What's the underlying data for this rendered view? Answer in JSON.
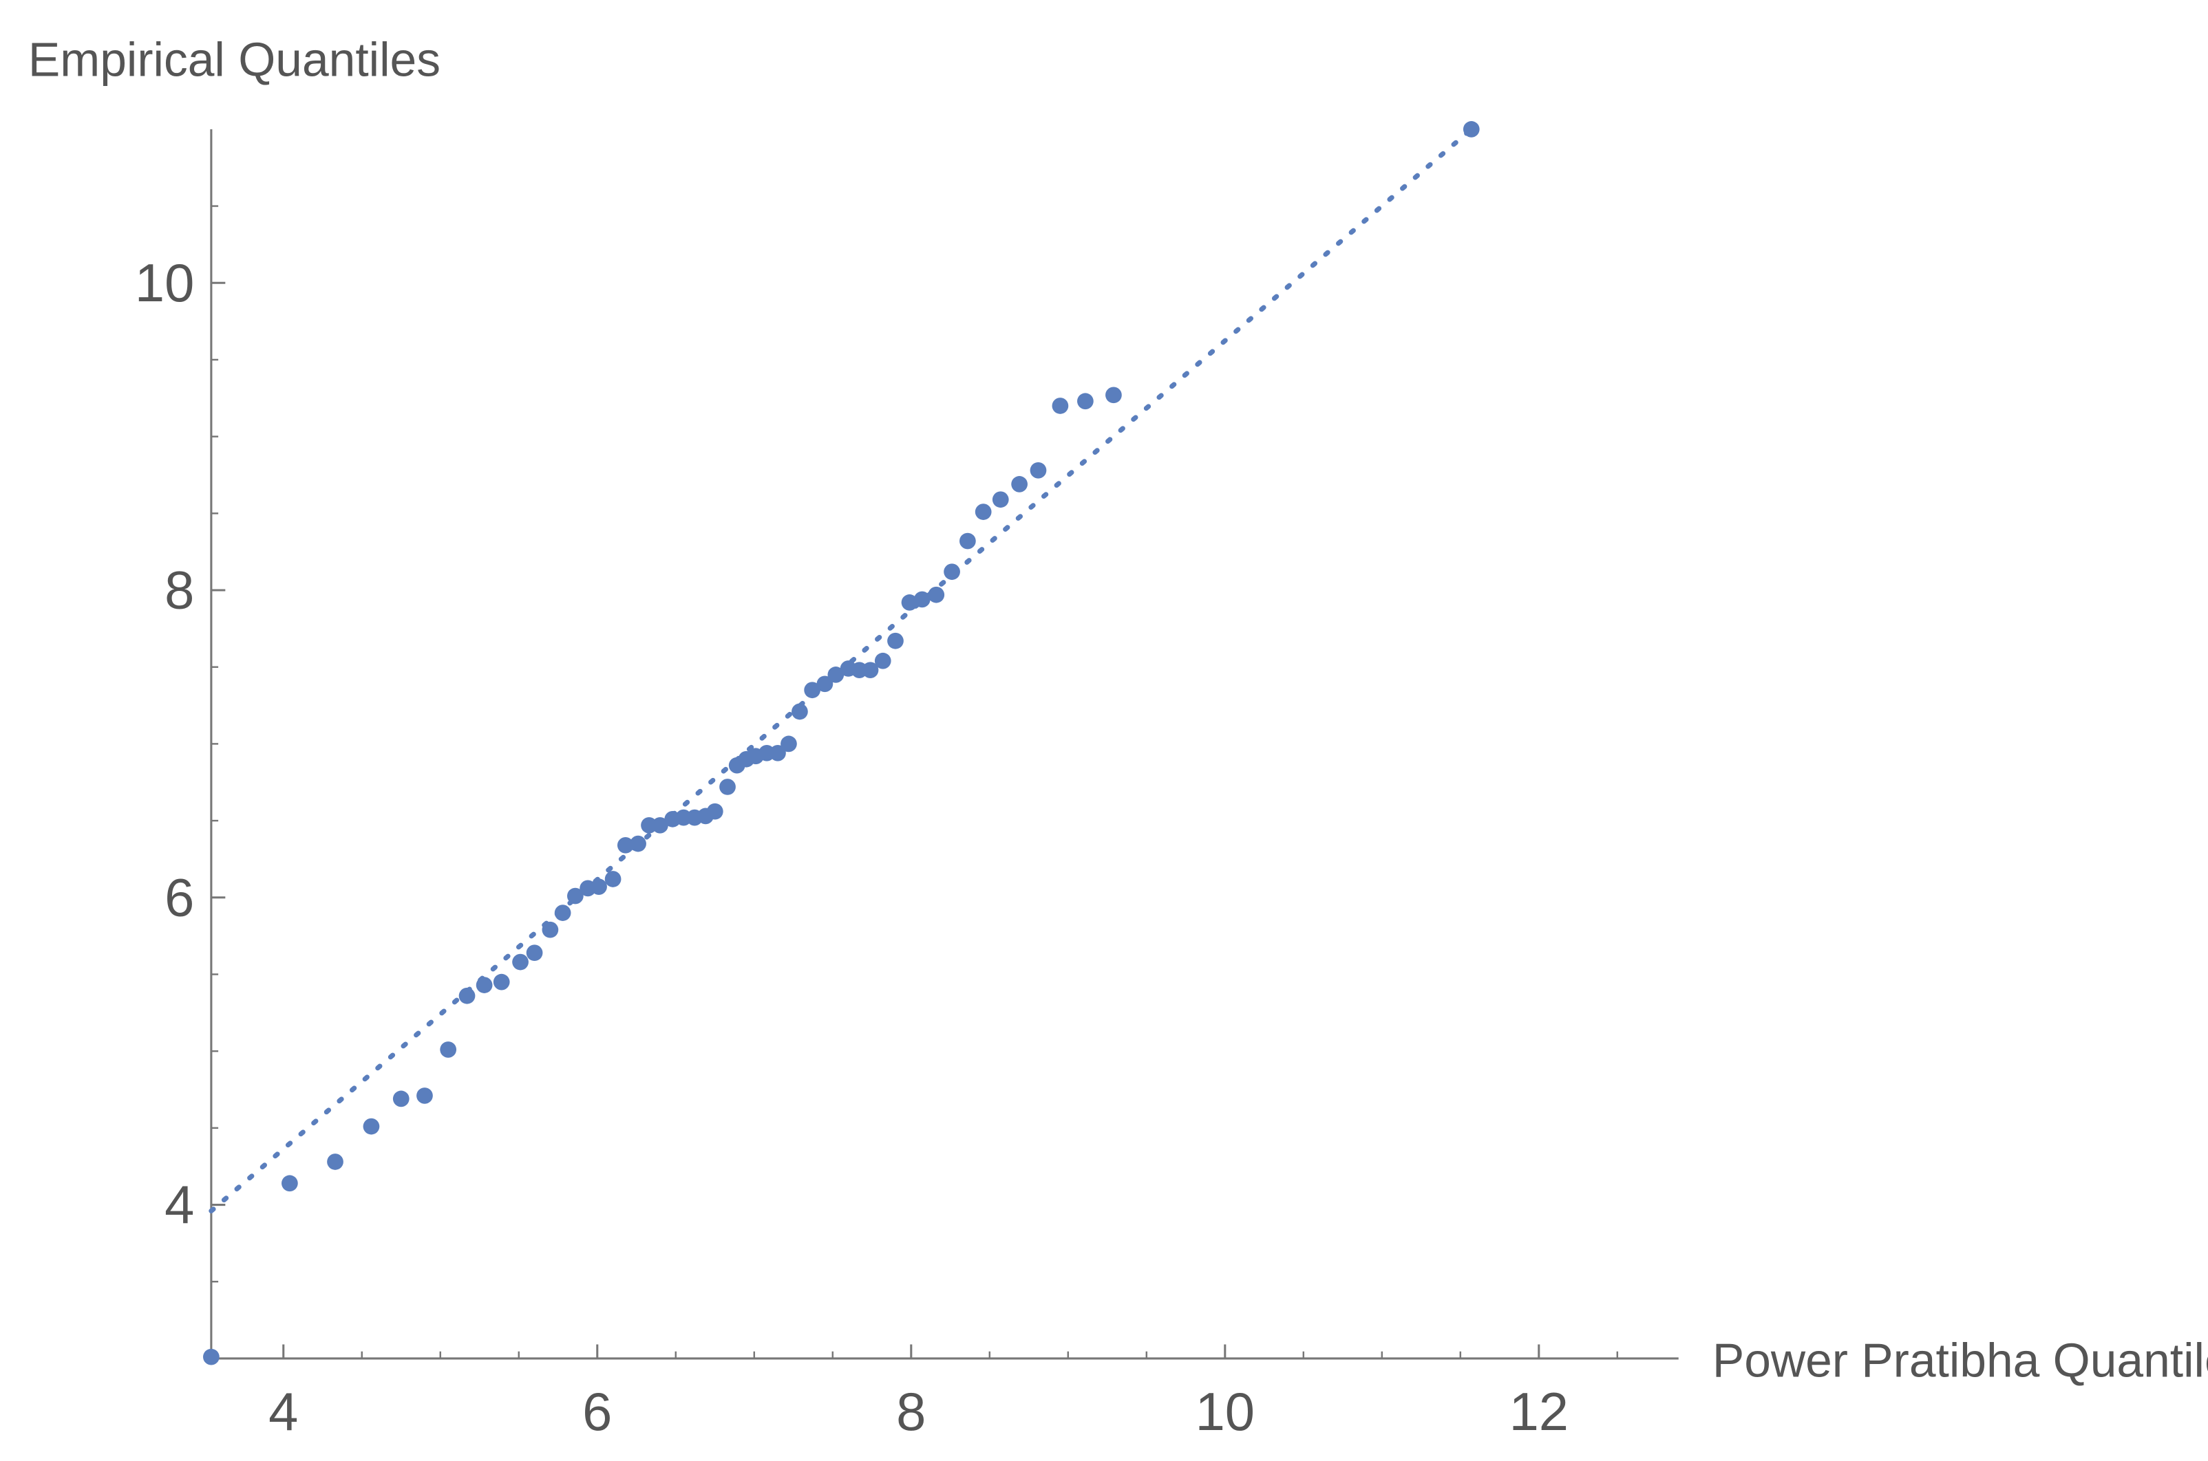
{
  "chart_data": {
    "type": "scatter",
    "x_label": "Power Pratibha Quantiles",
    "y_label": "Empirical Quantiles",
    "color": "#5a7ebd",
    "xlim": [
      3.54,
      12.89
    ],
    "ylim": [
      3.0,
      11.0
    ],
    "xticks": [
      4,
      6,
      8,
      10,
      12
    ],
    "yticks": [
      4,
      6,
      8,
      10
    ],
    "xminorticks": [
      4.5,
      5,
      5.5,
      6.5,
      7,
      7.5,
      8.5,
      9,
      9.5,
      10.5,
      11,
      11.5,
      12.5
    ],
    "yminorticks": [
      3,
      3.5,
      4.5,
      5,
      5.5,
      6.5,
      7,
      7.5,
      8.5,
      9,
      9.5,
      10.5
    ],
    "x": [
      3.54,
      4.04,
      4.33,
      4.56,
      4.75,
      4.9,
      5.05,
      5.17,
      5.28,
      5.39,
      5.51,
      5.6,
      5.7,
      5.78,
      5.86,
      5.94,
      6.01,
      6.1,
      6.18,
      6.26,
      6.33,
      6.4,
      6.48,
      6.55,
      6.62,
      6.69,
      6.75,
      6.83,
      6.89,
      6.95,
      7.01,
      7.08,
      7.15,
      7.22,
      7.29,
      7.37,
      7.45,
      7.52,
      7.6,
      7.67,
      7.74,
      7.82,
      7.9,
      7.99,
      8.07,
      8.16,
      8.26,
      8.36,
      8.46,
      8.57,
      8.69,
      8.81,
      8.95,
      9.11,
      9.29,
      11.57
    ],
    "y": [
      3.01,
      4.14,
      4.28,
      4.51,
      4.69,
      4.71,
      5.01,
      5.36,
      5.43,
      5.45,
      5.58,
      5.64,
      5.79,
      5.9,
      6.01,
      6.06,
      6.07,
      6.12,
      6.34,
      6.35,
      6.47,
      6.47,
      6.51,
      6.52,
      6.52,
      6.53,
      6.56,
      6.72,
      6.86,
      6.9,
      6.92,
      6.94,
      6.94,
      7.0,
      7.21,
      7.35,
      7.39,
      7.45,
      7.49,
      7.48,
      7.48,
      7.54,
      7.67,
      7.92,
      7.94,
      7.97,
      8.12,
      8.32,
      8.51,
      8.59,
      8.69,
      8.78,
      9.2,
      9.23,
      9.27,
      11.0
    ],
    "reference_line": {
      "x": [
        3.54,
        11.57
      ],
      "y": [
        3.96,
        11.0
      ]
    }
  }
}
